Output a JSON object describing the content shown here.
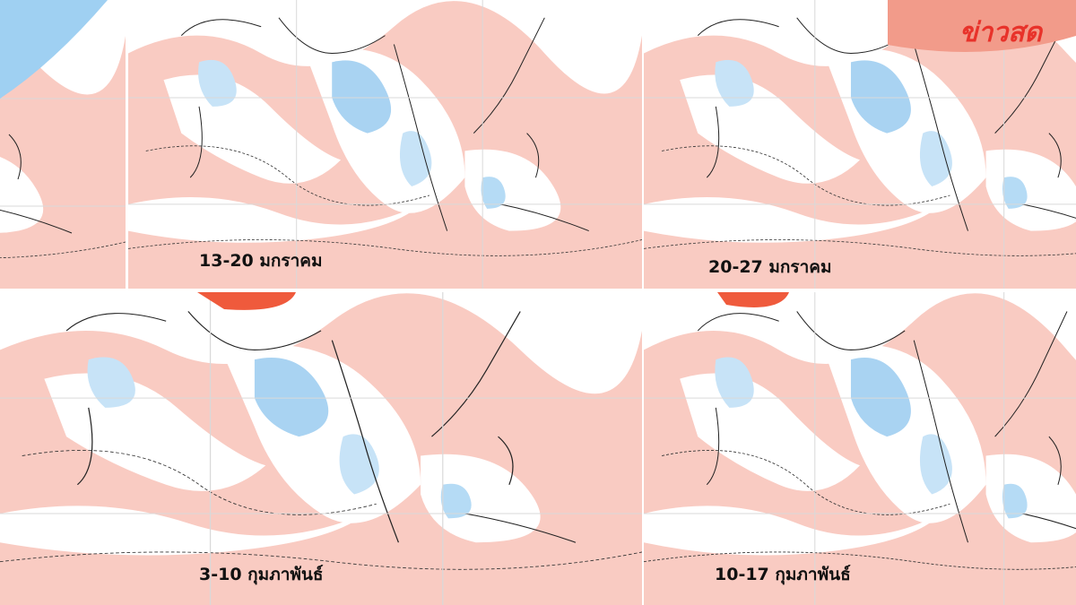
{
  "logo": "ข่าวสด",
  "panels": [
    {
      "label": "13-20 มกราคม"
    },
    {
      "label": "20-27 มกราคม"
    },
    {
      "label": "3-10 กุมภาพันธ์"
    },
    {
      "label": "10-17 กุมภาพันธ์"
    }
  ]
}
